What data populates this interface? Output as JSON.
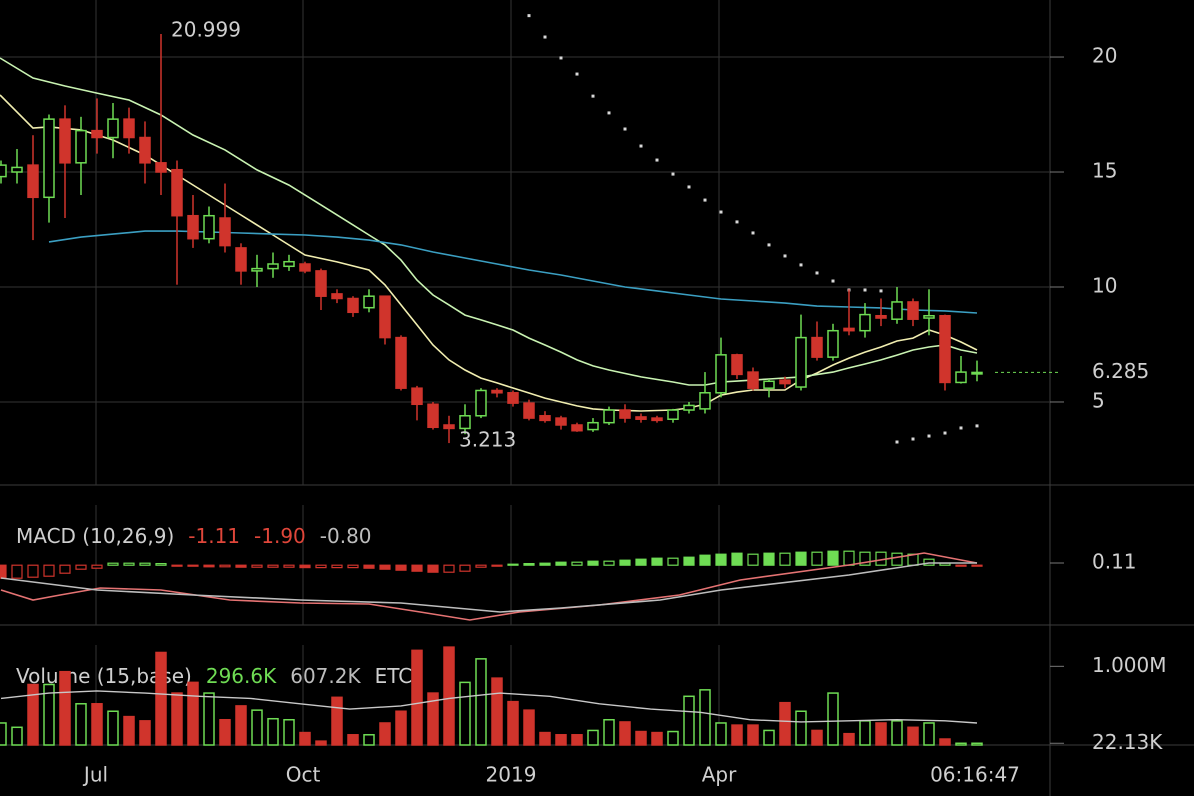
{
  "chart_data": [
    {
      "type": "candlestick",
      "time_label": "06:16:47",
      "xlim": [
        -0.0625,
        65.5625
      ],
      "xticks": [
        {
          "value": 5.9375,
          "label": "Jul"
        },
        {
          "value": 18.875,
          "label": "Oct"
        },
        {
          "value": 31.875,
          "label": "2019"
        },
        {
          "value": 44.875,
          "label": "Apr"
        }
      ],
      "ylim": [
        1.39,
        22.48
      ],
      "yticks": [
        5,
        10,
        15,
        20
      ],
      "grid": true,
      "up_color": "#6fdc54",
      "down_color": "#d0342c",
      "open": [
        14.8,
        15,
        15.3,
        13.9,
        17.3,
        15.4,
        16.8,
        16.5,
        17.3,
        16.5,
        15.4,
        15.1,
        13.1,
        12.1,
        13,
        11.7,
        10.7,
        10.8,
        10.9,
        11,
        10.7,
        9.7,
        9.5,
        9.1,
        9.6,
        7.8,
        5.6,
        4.9,
        4.0,
        3.85,
        4.4,
        5.5,
        5.4,
        4.95,
        4.4,
        4.3,
        4.0,
        3.8,
        4.1,
        4.65,
        4.35,
        4.3,
        4.25,
        4.65,
        4.7,
        5.4,
        7.05,
        6.3,
        5.6,
        5.95,
        5.65,
        7.8,
        6.95,
        8.2,
        8.1,
        8.75,
        8.6,
        9.35,
        8.65,
        8.75,
        5.85,
        6.25
      ],
      "high": [
        15.5,
        16,
        16.6,
        17.5,
        17.9,
        17.4,
        18.2,
        18,
        17.8,
        17.2,
        20.999,
        15.5,
        14,
        13.5,
        14.5,
        11.9,
        11.4,
        11.5,
        11.4,
        11.1,
        10.8,
        9.9,
        9.6,
        9.9,
        9.6,
        7.9,
        5.7,
        5.0,
        4.4,
        4.9,
        5.6,
        5.6,
        5.5,
        5.1,
        4.6,
        4.4,
        4.1,
        4.3,
        4.8,
        4.9,
        4.5,
        4.4,
        4.7,
        5.0,
        6.3,
        7.8,
        7.1,
        6.5,
        6.0,
        6.1,
        8.8,
        8.5,
        8.4,
        9.9,
        9.3,
        9.5,
        10.0,
        9.5,
        9.9,
        8.8,
        7.0,
        6.8
      ],
      "low": [
        14.5,
        14.5,
        12.04,
        12.8,
        13.0,
        14.0,
        15.8,
        15.6,
        15.8,
        14.5,
        14.0,
        10.1,
        11.7,
        11.9,
        11.5,
        10.1,
        10.0,
        10.4,
        10.7,
        10.6,
        9.0,
        9.3,
        8.7,
        8.9,
        7.5,
        5.5,
        4.2,
        3.8,
        3.213,
        3.6,
        4.3,
        5.2,
        4.8,
        4.2,
        4.1,
        3.8,
        3.7,
        3.7,
        4.0,
        4.1,
        4.1,
        4.1,
        4.1,
        4.5,
        4.5,
        5.2,
        6.0,
        5.5,
        5.2,
        5.6,
        5.5,
        6.8,
        6.8,
        7.9,
        7.8,
        8.3,
        8.4,
        8.3,
        7.9,
        5.5,
        5.8,
        5.9
      ],
      "close": [
        15.3,
        15.2,
        13.9,
        17.3,
        15.4,
        16.8,
        16.5,
        17.3,
        16.5,
        15.4,
        15.0,
        13.1,
        12.1,
        13.1,
        11.8,
        10.7,
        10.8,
        11.0,
        11.1,
        10.7,
        9.6,
        9.5,
        8.9,
        9.6,
        7.8,
        5.6,
        4.9,
        3.9,
        3.85,
        4.4,
        5.5,
        5.4,
        4.95,
        4.3,
        4.2,
        4.0,
        3.75,
        4.1,
        4.65,
        4.3,
        4.25,
        4.2,
        4.65,
        4.85,
        5.4,
        7.05,
        6.2,
        5.6,
        5.9,
        5.8,
        7.8,
        6.95,
        8.1,
        8.1,
        8.8,
        8.65,
        9.35,
        8.6,
        8.75,
        5.85,
        6.3,
        6.285
      ],
      "annotations": [
        {
          "x": 10,
          "value": 20.999
        },
        {
          "x": 28,
          "value": 3.213
        }
      ],
      "last_color": "#6fdc54",
      "overlays": [
        {
          "style": "line",
          "color": "#f1eeb0",
          "x": [
            -0.06,
            2,
            3,
            5,
            7,
            9,
            11,
            13,
            15,
            17,
            19,
            21,
            23,
            24,
            25,
            26,
            27,
            28,
            29,
            30,
            31,
            32,
            33,
            34,
            35,
            36,
            37,
            38,
            40,
            42,
            43,
            44,
            45,
            46,
            47,
            49,
            50,
            51,
            52,
            53,
            54,
            55,
            56,
            57,
            58,
            59,
            60,
            61
          ],
          "values": [
            18.35,
            16.91,
            16.96,
            16.83,
            16.39,
            15.74,
            14.87,
            14.0,
            13.13,
            12.26,
            11.39,
            11.09,
            10.74,
            10.09,
            9.22,
            8.35,
            7.48,
            6.83,
            6.39,
            6.04,
            5.83,
            5.61,
            5.39,
            5.17,
            5.0,
            4.83,
            4.7,
            4.65,
            4.61,
            4.65,
            4.74,
            4.91,
            5.3,
            5.43,
            5.52,
            5.52,
            5.96,
            6.26,
            6.61,
            6.91,
            7.17,
            7.39,
            7.65,
            7.78,
            8.13,
            7.91,
            7.61,
            7.26
          ]
        },
        {
          "style": "line",
          "color": "#c9f3b2",
          "x": [
            -0.06,
            2,
            4,
            6,
            8,
            10,
            12,
            14,
            16,
            18,
            20,
            22,
            23,
            24,
            25,
            26,
            27,
            28,
            29,
            30,
            31,
            32,
            33,
            34,
            35,
            36,
            37,
            38,
            40,
            42,
            43,
            44,
            45,
            46,
            48,
            50,
            52,
            53,
            54,
            55,
            56,
            57,
            58,
            59,
            60,
            61
          ],
          "values": [
            19.96,
            19.09,
            18.74,
            18.43,
            18.13,
            17.48,
            16.61,
            15.96,
            15.09,
            14.43,
            13.57,
            12.7,
            12.26,
            11.83,
            11.17,
            10.3,
            9.65,
            9.22,
            8.78,
            8.57,
            8.35,
            8.13,
            7.78,
            7.48,
            7.17,
            6.83,
            6.57,
            6.39,
            6.09,
            5.87,
            5.74,
            5.74,
            5.87,
            5.91,
            6.0,
            6.09,
            6.3,
            6.48,
            6.65,
            6.83,
            7.04,
            7.26,
            7.39,
            7.48,
            7.26,
            7.13
          ]
        },
        {
          "style": "line",
          "color": "#3b9fc2",
          "x": [
            3,
            5,
            7,
            9,
            11,
            13,
            15,
            17,
            19,
            21,
            23,
            25,
            27,
            29,
            31,
            33,
            35,
            37,
            39,
            41,
            43,
            45,
            47,
            49,
            51,
            53,
            55,
            57,
            59,
            61
          ],
          "values": [
            11.96,
            12.17,
            12.3,
            12.43,
            12.43,
            12.39,
            12.35,
            12.3,
            12.26,
            12.17,
            12.04,
            11.83,
            11.52,
            11.26,
            11.0,
            10.74,
            10.52,
            10.26,
            10.0,
            9.83,
            9.65,
            9.48,
            9.39,
            9.3,
            9.17,
            9.13,
            9.09,
            9.0,
            8.96,
            8.87
          ]
        },
        {
          "style": "dots",
          "color": "#d8d8d8",
          "x": [
            33,
            34,
            35,
            36,
            37,
            38,
            39,
            40,
            41,
            42,
            43,
            44,
            45,
            46,
            47,
            48,
            49,
            50,
            51,
            52,
            53,
            54,
            55,
            56,
            57,
            58,
            59,
            60,
            61
          ],
          "values": [
            21.8,
            20.87,
            19.96,
            19.26,
            18.3,
            17.57,
            16.87,
            16.13,
            15.52,
            14.91,
            14.35,
            13.78,
            13.26,
            12.83,
            12.35,
            11.83,
            11.35,
            10.96,
            10.61,
            10.26,
            9.87,
            9.87,
            9.83,
            3.26,
            3.39,
            3.52,
            3.65,
            3.87,
            3.96
          ]
        }
      ]
    },
    {
      "type": "macd",
      "title": "MACD (10,26,9)",
      "readouts": [
        {
          "value": -1.11,
          "label": "-1.11",
          "color": "#e0463a"
        },
        {
          "value": -1.9,
          "label": "-1.90",
          "color": "#e0463a"
        },
        {
          "value": -0.8,
          "label": "-0.80",
          "color": "#bdbdbd"
        }
      ],
      "ylim": [
        -2.99,
        3.01
      ],
      "yticks": [
        0.11
      ],
      "up_color": "#6fdc54",
      "down_color": "#d0342c",
      "histogram": [
        -0.65,
        -0.65,
        -0.6,
        -0.55,
        -0.4,
        -0.2,
        -0.15,
        0.1,
        0.1,
        0.1,
        0.08,
        -0.05,
        -0.05,
        -0.08,
        -0.08,
        -0.1,
        -0.1,
        -0.1,
        -0.1,
        -0.12,
        -0.12,
        -0.12,
        -0.12,
        -0.15,
        -0.2,
        -0.25,
        -0.3,
        -0.35,
        -0.35,
        -0.3,
        -0.1,
        -0.05,
        0.05,
        0.08,
        0.1,
        0.15,
        0.15,
        0.2,
        0.2,
        0.25,
        0.3,
        0.35,
        0.35,
        0.4,
        0.5,
        0.55,
        0.6,
        0.55,
        0.6,
        0.6,
        0.65,
        0.65,
        0.7,
        0.7,
        0.65,
        0.65,
        0.6,
        0.55,
        0.3,
        0.1,
        -0.05,
        -0.05
      ],
      "lines": [
        {
          "color": "#e57373",
          "x": [
            0,
            2,
            3.7,
            6.2,
            10,
            14.3,
            18.7,
            23,
            26.2,
            29.3,
            32.4,
            37.4,
            42.4,
            46.2,
            53,
            57.7,
            60,
            61
          ],
          "values": [
            -1.24,
            -1.74,
            -1.49,
            -1.14,
            -1.24,
            -1.74,
            -1.89,
            -1.94,
            -2.34,
            -2.74,
            -2.34,
            -1.99,
            -1.49,
            -0.74,
            0.01,
            0.61,
            0.26,
            0.11
          ]
        },
        {
          "color": "#bdbdbd",
          "x": [
            0,
            6,
            12,
            18.7,
            25,
            31.2,
            35,
            41.2,
            45,
            53,
            58,
            61
          ],
          "values": [
            -0.64,
            -1.24,
            -1.49,
            -1.74,
            -1.89,
            -2.34,
            -2.14,
            -1.74,
            -1.24,
            -0.49,
            0.11,
            0.11
          ]
        }
      ]
    },
    {
      "type": "volume",
      "title": "Volume (15,base)",
      "readouts": [
        {
          "value": 296600,
          "label": "296.6K",
          "color": "#6fdc54"
        },
        {
          "value": 607200,
          "label": "607.2K",
          "color": "#bdbdbd"
        }
      ],
      "currency": "ETC",
      "ylim": [
        0,
        1271000
      ],
      "yticks": [
        {
          "value": 1000000,
          "label": "1.000M"
        },
        {
          "value": 22130,
          "label": "22.13K"
        }
      ],
      "up_color": "#6fdc54",
      "down_color": "#d0342c",
      "values": [
        280000,
        225000,
        769000,
        769000,
        932000,
        524000,
        524000,
        429000,
        361000,
        307000,
        1176000,
        660000,
        796000,
        660000,
        321000,
        497000,
        443000,
        334000,
        321000,
        158000,
        49000,
        606000,
        130000,
        130000,
        280000,
        429000,
        1203000,
        660000,
        1244000,
        796000,
        1095000,
        850000,
        551000,
        443000,
        158000,
        130000,
        130000,
        185000,
        321000,
        293000,
        171000,
        158000,
        171000,
        619000,
        701000,
        280000,
        253000,
        253000,
        185000,
        538000,
        429000,
        185000,
        660000,
        144000,
        307000,
        280000,
        307000,
        225000,
        280000,
        76000,
        22000,
        22130
      ],
      "ma": {
        "color": "#c8c8c8",
        "x": [
          0,
          3,
          6,
          9,
          12.4,
          15.6,
          18.7,
          21.8,
          25,
          28,
          31.2,
          34.3,
          37.4,
          40.6,
          43.7,
          46.8,
          50,
          53,
          56,
          59,
          61
        ],
        "values": [
          592000,
          660000,
          687000,
          660000,
          619000,
          592000,
          524000,
          456000,
          497000,
          592000,
          660000,
          619000,
          524000,
          456000,
          416000,
          321000,
          293000,
          307000,
          321000,
          307000,
          280000
        ]
      }
    }
  ]
}
